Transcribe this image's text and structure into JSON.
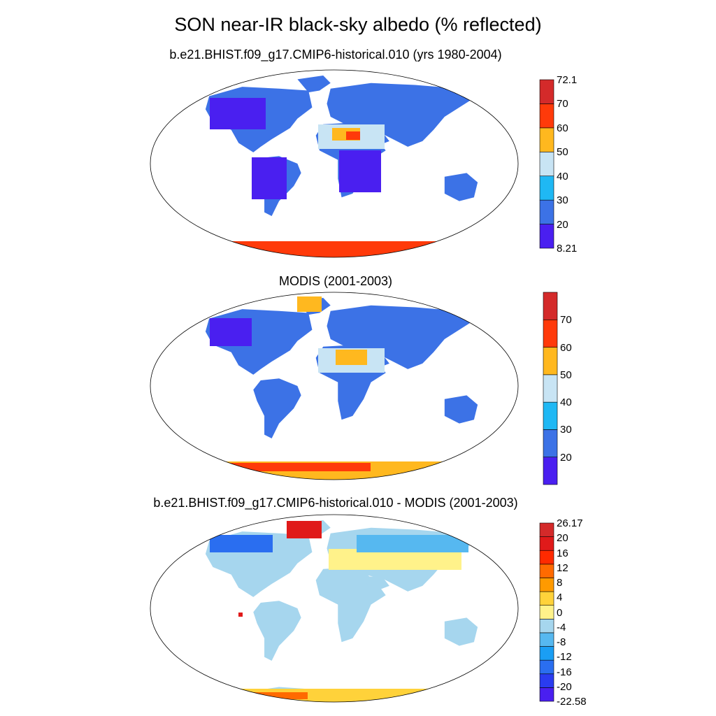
{
  "title": "SON near-IR black-sky albedo (% reflected)",
  "panels": [
    {
      "title": "b.e21.BHIST.f09_g17.CMIP6-historical.010 (yrs 1980-2004)",
      "colorbar": {
        "colors": [
          "#4a1ff0",
          "#3c72e6",
          "#1fb8f4",
          "#c8e4f4",
          "#ffb81f",
          "#ff3a0a",
          "#d42a2a"
        ],
        "labels": [
          "8.21",
          "20",
          "30",
          "40",
          "50",
          "60",
          "70",
          "72.1"
        ]
      }
    },
    {
      "title": "MODIS (2001-2003)",
      "colorbar": {
        "colors": [
          "#4a1ff0",
          "#3c72e6",
          "#1fb8f4",
          "#c8e4f4",
          "#ffb81f",
          "#ff3a0a",
          "#d42a2a"
        ],
        "labels": [
          "",
          "20",
          "30",
          "40",
          "50",
          "60",
          "70",
          ""
        ]
      }
    },
    {
      "title": "b.e21.BHIST.f09_g17.CMIP6-historical.010 - MODIS (2001-2003)",
      "colorbar": {
        "colors": [
          "#4a1ff0",
          "#2a3cf0",
          "#2a6ef0",
          "#1a9ef4",
          "#56b8f0",
          "#a6d6ee",
          "#fff28a",
          "#ffd23a",
          "#ff9a00",
          "#ff6a00",
          "#ff2a00",
          "#e01a1a",
          "#d42a2a"
        ],
        "labels": [
          "-22.58",
          "-20",
          "-16",
          "-12",
          "-8",
          "-4",
          "0",
          "4",
          "8",
          "12",
          "16",
          "20",
          "26.17"
        ]
      }
    }
  ],
  "icons": {
    "map": "world-map-robinson"
  }
}
